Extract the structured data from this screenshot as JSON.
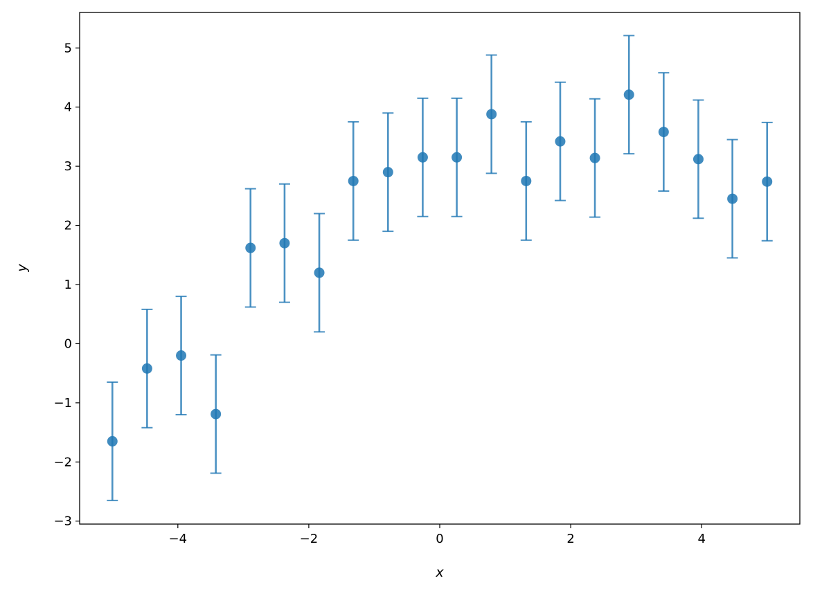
{
  "chart_data": {
    "type": "scatter",
    "title": "",
    "xlabel": "x",
    "ylabel": "y",
    "xlim": [
      -5.5,
      5.5
    ],
    "ylim": [
      -3.05,
      5.6
    ],
    "x_ticks": [
      -4,
      -2,
      0,
      2,
      4
    ],
    "x_tick_labels": [
      "−4",
      "−2",
      "0",
      "2",
      "4"
    ],
    "y_ticks": [
      -3,
      -2,
      -1,
      0,
      1,
      2,
      3,
      4,
      5
    ],
    "y_tick_labels": [
      "−3",
      "−2",
      "−1",
      "0",
      "1",
      "2",
      "3",
      "4",
      "5"
    ],
    "grid": false,
    "legend": "none",
    "marker_color": "#1f77b4",
    "error_bar": 1.0,
    "series": [
      {
        "x": [
          -5.0,
          -4.47,
          -3.95,
          -3.42,
          -2.89,
          -2.37,
          -1.84,
          -1.32,
          -0.79,
          -0.26,
          0.26,
          0.79,
          1.32,
          1.84,
          2.37,
          2.89,
          3.42,
          3.95,
          4.47,
          5.0
        ],
        "y": [
          -1.65,
          -0.42,
          -0.2,
          -1.19,
          1.62,
          1.7,
          1.2,
          2.75,
          2.9,
          3.15,
          3.15,
          3.88,
          2.75,
          3.42,
          3.14,
          4.21,
          3.58,
          3.12,
          2.45,
          2.74
        ],
        "yerr": 1.0
      }
    ]
  }
}
